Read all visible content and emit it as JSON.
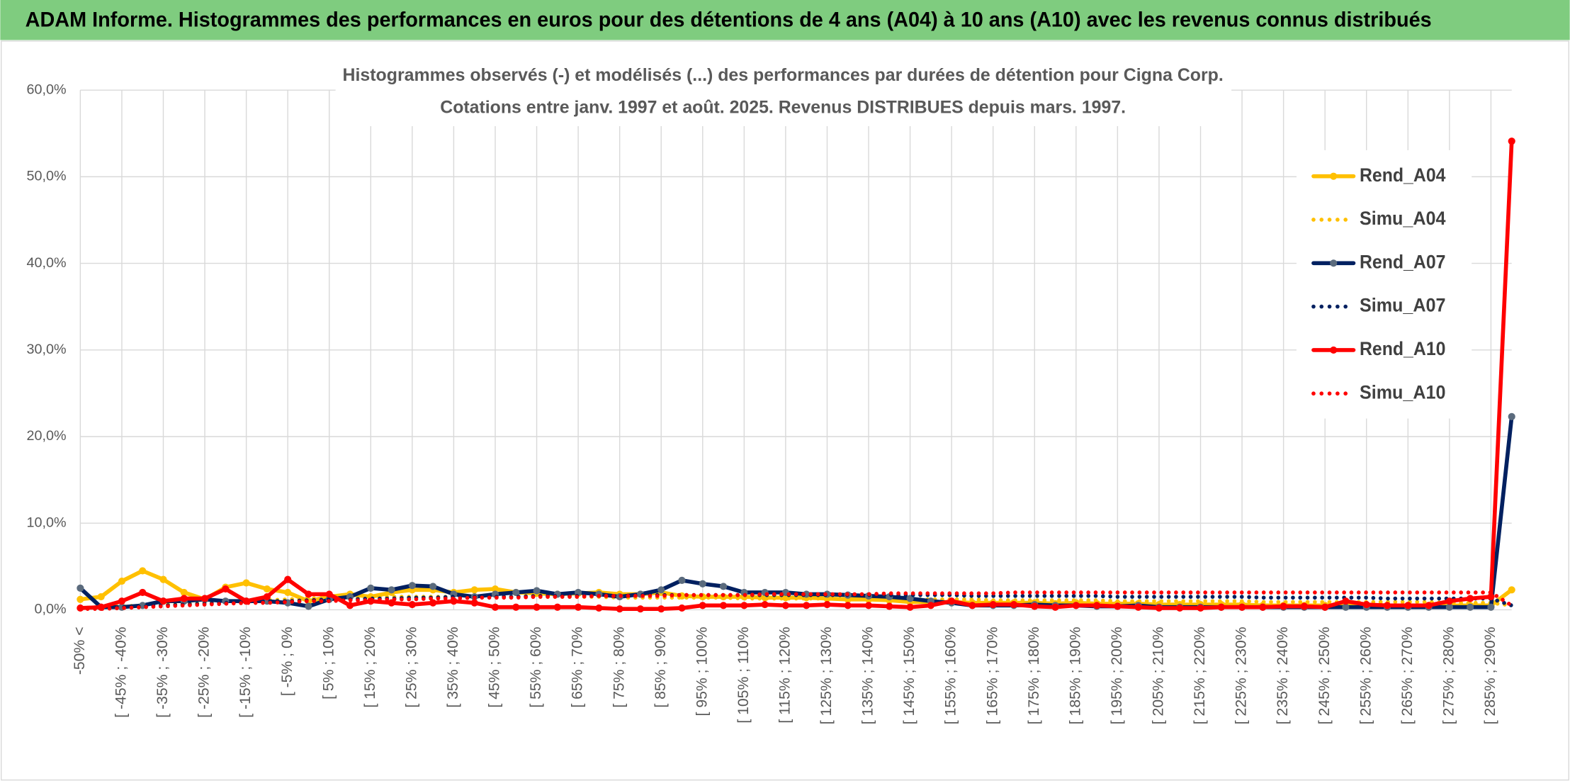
{
  "chart_data": {
    "type": "line",
    "suptitle": "ADAM Informe. Histogrammes des performances en euros pour des détentions de 4 ans (A04) à 10 ans (A10) avec les revenus connus distribués",
    "title": [
      "Histogrammes observés (-) et modélisés (...) des performances par durées de détention pour Cigna Corp.",
      "Cotations entre janv. 1997 et août. 2025. Revenus DISTRIBUES depuis mars. 1997."
    ],
    "categories": [
      "-50% <",
      null,
      "[ -45% ; -40%",
      null,
      "[ -35% ; -30%",
      null,
      "[ -25% ; -20%",
      null,
      "[ -15% ; -10%",
      null,
      "[ -5% ; 0%",
      null,
      "[ 5% ; 10%",
      null,
      "[ 15% ; 20%",
      null,
      "[ 25% ; 30%",
      null,
      "[ 35% ; 40%",
      null,
      "[ 45% ; 50%",
      null,
      "[ 55% ; 60%",
      null,
      "[ 65% ; 70%",
      null,
      "[ 75% ; 80%",
      null,
      "[ 85% ; 90%",
      null,
      "[ 95% ; 100%",
      null,
      "[ 105% ; 110%",
      null,
      "[ 115% ; 120%",
      null,
      "[ 125% ; 130%",
      null,
      "[ 135% ; 140%",
      null,
      "[ 145% ; 150%",
      null,
      "[ 155% ; 160%",
      null,
      "[ 165% ; 170%",
      null,
      "[ 175% ; 180%",
      null,
      "[ 185% ; 190%",
      null,
      "[ 195% ; 200%",
      null,
      "[ 205% ; 210%",
      null,
      "[ 215% ; 220%",
      null,
      "[ 225% ; 230%",
      null,
      "[ 235% ; 240%",
      null,
      "[ 245% ; 250%",
      null,
      "[ 255% ; 260%",
      null,
      "[ 265% ; 270%",
      null,
      "[ 275% ; 280%",
      null,
      "[ 285% ; 290%",
      null
    ],
    "series": [
      {
        "name": "Rend_A04",
        "color": "#ffc000",
        "marker_color": "#ffc000",
        "style": "solid",
        "values": [
          1.2,
          1.5,
          3.3,
          4.5,
          3.5,
          2.0,
          1.2,
          2.6,
          3.1,
          2.4,
          2.0,
          1.0,
          1.5,
          1.8,
          1.5,
          2.0,
          2.3,
          2.3,
          2.0,
          2.3,
          2.4,
          2.0,
          1.9,
          1.8,
          1.9,
          2.0,
          1.8,
          1.8,
          2.0,
          1.6,
          1.5,
          1.5,
          1.5,
          1.4,
          1.4,
          1.4,
          1.3,
          1.2,
          1.2,
          1.1,
          0.9,
          0.9,
          0.9,
          0.8,
          0.8,
          0.8,
          0.8,
          0.7,
          0.8,
          0.7,
          0.7,
          0.7,
          0.6,
          0.6,
          0.6,
          0.6,
          0.6,
          0.5,
          0.5,
          0.5,
          0.5,
          0.5,
          0.5,
          0.5,
          0.5,
          0.5,
          0.5,
          0.5,
          0.5,
          2.3
        ]
      },
      {
        "name": "Simu_A04",
        "color": "#ffc000",
        "style": "dotted",
        "values": [
          0.2,
          0.3,
          0.4,
          0.5,
          0.6,
          0.7,
          0.8,
          0.9,
          1.0,
          1.1,
          1.2,
          1.3,
          1.4,
          1.4,
          1.5,
          1.5,
          1.5,
          1.5,
          1.5,
          1.5,
          1.5,
          1.5,
          1.5,
          1.5,
          1.5,
          1.5,
          1.4,
          1.4,
          1.4,
          1.4,
          1.4,
          1.4,
          1.3,
          1.3,
          1.3,
          1.3,
          1.3,
          1.3,
          1.2,
          1.2,
          1.2,
          1.2,
          1.2,
          1.2,
          1.1,
          1.1,
          1.1,
          1.1,
          1.1,
          1.1,
          1.0,
          1.0,
          1.0,
          1.0,
          1.0,
          1.0,
          1.0,
          0.9,
          0.9,
          0.9,
          0.9,
          0.9,
          0.9,
          0.9,
          0.9,
          0.9,
          0.8,
          0.8,
          0.8,
          0.5
        ]
      },
      {
        "name": "Rend_A07",
        "color": "#002060",
        "marker_color": "#5b6b7d",
        "style": "solid",
        "values": [
          2.5,
          0.3,
          0.3,
          0.5,
          1.0,
          1.0,
          1.2,
          1.0,
          1.0,
          1.0,
          0.8,
          0.4,
          1.2,
          1.5,
          2.5,
          2.3,
          2.8,
          2.7,
          1.8,
          1.5,
          1.8,
          2.0,
          2.2,
          1.8,
          2.0,
          1.8,
          1.5,
          1.8,
          2.3,
          3.4,
          3.0,
          2.7,
          2.0,
          2.0,
          2.0,
          1.8,
          1.8,
          1.7,
          1.6,
          1.5,
          1.3,
          1.0,
          0.8,
          0.5,
          0.5,
          0.5,
          0.6,
          0.5,
          0.5,
          0.4,
          0.4,
          0.5,
          0.3,
          0.3,
          0.3,
          0.3,
          0.3,
          0.3,
          0.3,
          0.3,
          0.3,
          0.3,
          0.3,
          0.3,
          0.3,
          0.3,
          0.3,
          0.3,
          0.3,
          22.3
        ]
      },
      {
        "name": "Simu_A07",
        "color": "#002060",
        "style": "dotted",
        "values": [
          0.1,
          0.2,
          0.3,
          0.4,
          0.5,
          0.6,
          0.7,
          0.8,
          0.9,
          1.0,
          1.0,
          1.1,
          1.2,
          1.2,
          1.3,
          1.3,
          1.4,
          1.4,
          1.5,
          1.5,
          1.5,
          1.5,
          1.6,
          1.6,
          1.6,
          1.6,
          1.6,
          1.7,
          1.7,
          1.7,
          1.7,
          1.7,
          1.7,
          1.7,
          1.7,
          1.7,
          1.7,
          1.7,
          1.7,
          1.7,
          1.7,
          1.7,
          1.7,
          1.6,
          1.6,
          1.6,
          1.6,
          1.6,
          1.6,
          1.6,
          1.5,
          1.5,
          1.5,
          1.5,
          1.5,
          1.5,
          1.5,
          1.4,
          1.4,
          1.4,
          1.4,
          1.4,
          1.4,
          1.3,
          1.3,
          1.3,
          1.3,
          1.3,
          1.3,
          0.5
        ]
      },
      {
        "name": "Rend_A10",
        "color": "#ff0000",
        "marker_color": "#ff0000",
        "style": "solid",
        "values": [
          0.2,
          0.3,
          1.0,
          2.0,
          1.0,
          1.3,
          1.3,
          2.4,
          1.0,
          1.5,
          3.5,
          1.8,
          1.8,
          0.5,
          1.0,
          0.8,
          0.6,
          0.8,
          1.0,
          0.8,
          0.3,
          0.3,
          0.3,
          0.3,
          0.3,
          0.2,
          0.1,
          0.1,
          0.1,
          0.2,
          0.5,
          0.5,
          0.5,
          0.6,
          0.5,
          0.5,
          0.6,
          0.5,
          0.5,
          0.4,
          0.3,
          0.5,
          1.0,
          0.5,
          0.6,
          0.6,
          0.4,
          0.3,
          0.5,
          0.5,
          0.4,
          0.3,
          0.2,
          0.2,
          0.2,
          0.3,
          0.3,
          0.3,
          0.4,
          0.4,
          0.3,
          1.0,
          0.6,
          0.5,
          0.5,
          0.5,
          1.0,
          1.3,
          1.5,
          54.1
        ]
      },
      {
        "name": "Simu_A10",
        "color": "#ff0000",
        "style": "dotted",
        "values": [
          0.1,
          0.1,
          0.2,
          0.3,
          0.4,
          0.5,
          0.6,
          0.7,
          0.8,
          0.8,
          0.9,
          1.0,
          1.0,
          1.1,
          1.1,
          1.2,
          1.2,
          1.3,
          1.3,
          1.4,
          1.4,
          1.4,
          1.5,
          1.5,
          1.5,
          1.6,
          1.6,
          1.6,
          1.6,
          1.7,
          1.7,
          1.7,
          1.7,
          1.8,
          1.8,
          1.8,
          1.8,
          1.8,
          1.8,
          1.9,
          1.9,
          1.9,
          1.9,
          1.9,
          1.9,
          2.0,
          2.0,
          2.0,
          2.0,
          2.0,
          2.0,
          2.0,
          2.0,
          2.0,
          2.0,
          2.0,
          2.0,
          2.0,
          2.0,
          2.0,
          2.0,
          2.0,
          2.0,
          2.0,
          2.0,
          2.0,
          2.0,
          2.0,
          2.0,
          0.5
        ]
      }
    ],
    "ylim": [
      0,
      60
    ],
    "yticks": [
      {
        "value": 0,
        "label": "0,0%"
      },
      {
        "value": 10,
        "label": "10,0%"
      },
      {
        "value": 20,
        "label": "20,0%"
      },
      {
        "value": 30,
        "label": "30,0%"
      },
      {
        "value": 40,
        "label": "40,0%"
      },
      {
        "value": 50,
        "label": "50,0%"
      },
      {
        "value": 60,
        "label": "60,0%"
      }
    ],
    "grid": true,
    "legend": "right"
  }
}
